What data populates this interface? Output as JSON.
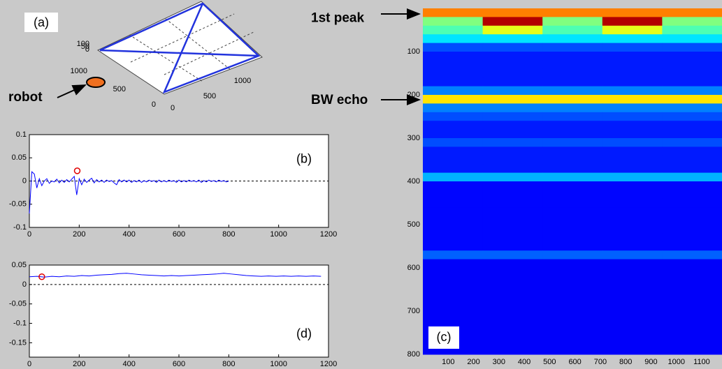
{
  "chart_data": [
    {
      "type": "line3d",
      "label": "(a)",
      "annotation": "robot",
      "xticks": [
        0,
        500,
        1000
      ],
      "yticks": [
        0,
        500,
        1000
      ],
      "zticks": [
        0,
        50,
        100
      ]
    },
    {
      "type": "line",
      "label": "(b)",
      "color": "#0000ff",
      "xlim": [
        0,
        1200
      ],
      "ylim": [
        -0.1,
        0.1
      ],
      "xticks": [
        0,
        200,
        400,
        600,
        800,
        1000,
        1200
      ],
      "yticks": [
        -0.1,
        -0.05,
        0,
        0.05,
        0.1
      ],
      "hline": 0,
      "marker": {
        "x": 192,
        "y": 0.022
      },
      "x": [
        0,
        10,
        20,
        30,
        40,
        50,
        60,
        70,
        80,
        90,
        100,
        110,
        120,
        130,
        140,
        150,
        160,
        170,
        180,
        190,
        200,
        210,
        220,
        230,
        240,
        250,
        260,
        270,
        280,
        290,
        300,
        310,
        320,
        330,
        340,
        350,
        360,
        370,
        380,
        390,
        400,
        410,
        420,
        430,
        440,
        450,
        460,
        470,
        480,
        490,
        500,
        510,
        520,
        530,
        540,
        550,
        560,
        570,
        580,
        590,
        600,
        610,
        620,
        630,
        640,
        650,
        660,
        670,
        680,
        690,
        700,
        710,
        720,
        730,
        740,
        750,
        760,
        770,
        780,
        790,
        800
      ],
      "values": [
        -0.07,
        0.02,
        0.015,
        -0.015,
        0.005,
        -0.01,
        0,
        0.005,
        -0.005,
        0,
        -0.002,
        0.004,
        -0.004,
        0.002,
        -0.003,
        0.003,
        -0.002,
        0.004,
        0.01,
        -0.03,
        0.005,
        -0.008,
        0.004,
        -0.003,
        0.002,
        0.006,
        -0.004,
        0.003,
        -0.002,
        0.002,
        -0.003,
        0.002,
        -0.001,
        0.001,
        -0.004,
        -0.008,
        0.003,
        -0.002,
        0.002,
        -0.002,
        0.002,
        -0.003,
        0.001,
        -0.002,
        0.002,
        -0.003,
        0.001,
        -0.002,
        0.002,
        -0.001,
        0.001,
        -0.003,
        0.002,
        -0.002,
        0.001,
        -0.002,
        0.002,
        -0.001,
        0.001,
        -0.003,
        0.002,
        -0.002,
        0.001,
        -0.002,
        0.002,
        -0.001,
        0.001,
        -0.002,
        0.002,
        -0.003,
        0.001,
        -0.002,
        0.002,
        -0.001,
        0.001,
        -0.002,
        0.002,
        -0.001,
        0.001,
        -0.002,
        0
      ]
    },
    {
      "type": "heatmap",
      "label": "(c)",
      "xlim": [
        0,
        1180
      ],
      "ylim": [
        0,
        800
      ],
      "xticks": [
        100,
        200,
        300,
        400,
        500,
        600,
        700,
        800,
        900,
        1000,
        1100
      ],
      "yticks": [
        100,
        200,
        300,
        400,
        500,
        600,
        700,
        800
      ],
      "annotations": [
        {
          "text": "1st peak",
          "y": 15
        },
        {
          "text": "BW echo",
          "y": 205
        }
      ],
      "x_bins": [
        0,
        236,
        472,
        708,
        944,
        1180
      ],
      "y_bins": [
        0,
        20,
        40,
        60,
        80,
        100,
        120,
        140,
        160,
        180,
        200,
        220,
        240,
        260,
        280,
        300,
        320,
        340,
        360,
        380,
        400,
        420,
        440,
        460,
        480,
        500,
        520,
        540,
        560,
        580,
        600,
        620,
        640,
        660,
        680,
        700,
        720,
        740,
        760,
        780,
        800
      ],
      "values": [
        [
          0.75,
          0.75,
          0.75,
          0.75,
          0.75
        ],
        [
          0.5,
          0.95,
          0.5,
          0.95,
          0.5
        ],
        [
          0.45,
          0.6,
          0.45,
          0.6,
          0.45
        ],
        [
          0.35,
          0.35,
          0.35,
          0.35,
          0.35
        ],
        [
          0.2,
          0.2,
          0.2,
          0.2,
          0.2
        ],
        [
          0.15,
          0.15,
          0.15,
          0.15,
          0.15
        ],
        [
          0.15,
          0.15,
          0.15,
          0.15,
          0.15
        ],
        [
          0.15,
          0.15,
          0.15,
          0.15,
          0.15
        ],
        [
          0.15,
          0.15,
          0.15,
          0.15,
          0.15
        ],
        [
          0.25,
          0.25,
          0.25,
          0.25,
          0.25
        ],
        [
          0.65,
          0.65,
          0.65,
          0.65,
          0.65
        ],
        [
          0.25,
          0.25,
          0.25,
          0.25,
          0.25
        ],
        [
          0.2,
          0.2,
          0.2,
          0.2,
          0.2
        ],
        [
          0.15,
          0.15,
          0.15,
          0.15,
          0.15
        ],
        [
          0.15,
          0.15,
          0.15,
          0.15,
          0.15
        ],
        [
          0.2,
          0.2,
          0.2,
          0.2,
          0.2
        ],
        [
          0.15,
          0.15,
          0.15,
          0.15,
          0.15
        ],
        [
          0.15,
          0.15,
          0.15,
          0.15,
          0.15
        ],
        [
          0.15,
          0.15,
          0.15,
          0.15,
          0.15
        ],
        [
          0.3,
          0.3,
          0.3,
          0.3,
          0.3
        ],
        [
          0.13,
          0.13,
          0.13,
          0.13,
          0.13
        ],
        [
          0.13,
          0.13,
          0.13,
          0.13,
          0.13
        ],
        [
          0.13,
          0.13,
          0.13,
          0.13,
          0.13
        ],
        [
          0.13,
          0.13,
          0.13,
          0.13,
          0.13
        ],
        [
          0.13,
          0.13,
          0.13,
          0.13,
          0.13
        ],
        [
          0.13,
          0.13,
          0.13,
          0.13,
          0.13
        ],
        [
          0.13,
          0.13,
          0.13,
          0.13,
          0.13
        ],
        [
          0.13,
          0.13,
          0.13,
          0.13,
          0.13
        ],
        [
          0.22,
          0.22,
          0.22,
          0.22,
          0.22
        ],
        [
          0.12,
          0.12,
          0.12,
          0.12,
          0.12
        ],
        [
          0.12,
          0.12,
          0.12,
          0.12,
          0.12
        ],
        [
          0.12,
          0.12,
          0.12,
          0.12,
          0.12
        ],
        [
          0.12,
          0.12,
          0.12,
          0.12,
          0.12
        ],
        [
          0.12,
          0.12,
          0.12,
          0.12,
          0.12
        ],
        [
          0.12,
          0.12,
          0.12,
          0.12,
          0.12
        ],
        [
          0.12,
          0.12,
          0.12,
          0.12,
          0.12
        ],
        [
          0.12,
          0.12,
          0.12,
          0.12,
          0.12
        ],
        [
          0.12,
          0.12,
          0.12,
          0.12,
          0.12
        ],
        [
          0.12,
          0.12,
          0.12,
          0.12,
          0.12
        ],
        [
          0.12,
          0.12,
          0.12,
          0.12,
          0.12
        ]
      ]
    },
    {
      "type": "line",
      "label": "(d)",
      "color": "#0000ff",
      "xlim": [
        0,
        1200
      ],
      "ylim": [
        -0.187,
        0.05
      ],
      "xticks": [
        0,
        200,
        400,
        600,
        800,
        1000,
        1200
      ],
      "yticks": [
        -0.15,
        -0.1,
        -0.05,
        0,
        0.05
      ],
      "hline": 0,
      "marker": {
        "x": 50,
        "y": 0.02
      },
      "x": [
        0,
        30,
        60,
        90,
        120,
        150,
        180,
        210,
        240,
        270,
        300,
        330,
        360,
        390,
        420,
        450,
        480,
        510,
        540,
        570,
        600,
        630,
        660,
        690,
        720,
        750,
        780,
        810,
        840,
        870,
        900,
        930,
        960,
        990,
        1020,
        1050,
        1080,
        1110,
        1140,
        1170
      ],
      "values": [
        0.02,
        0.021,
        0.019,
        0.021,
        0.02,
        0.022,
        0.021,
        0.023,
        0.022,
        0.024,
        0.025,
        0.026,
        0.028,
        0.029,
        0.027,
        0.025,
        0.024,
        0.023,
        0.022,
        0.023,
        0.022,
        0.023,
        0.024,
        0.025,
        0.026,
        0.027,
        0.029,
        0.027,
        0.025,
        0.023,
        0.022,
        0.021,
        0.022,
        0.021,
        0.022,
        0.021,
        0.022,
        0.021,
        0.022,
        0.021
      ]
    }
  ]
}
